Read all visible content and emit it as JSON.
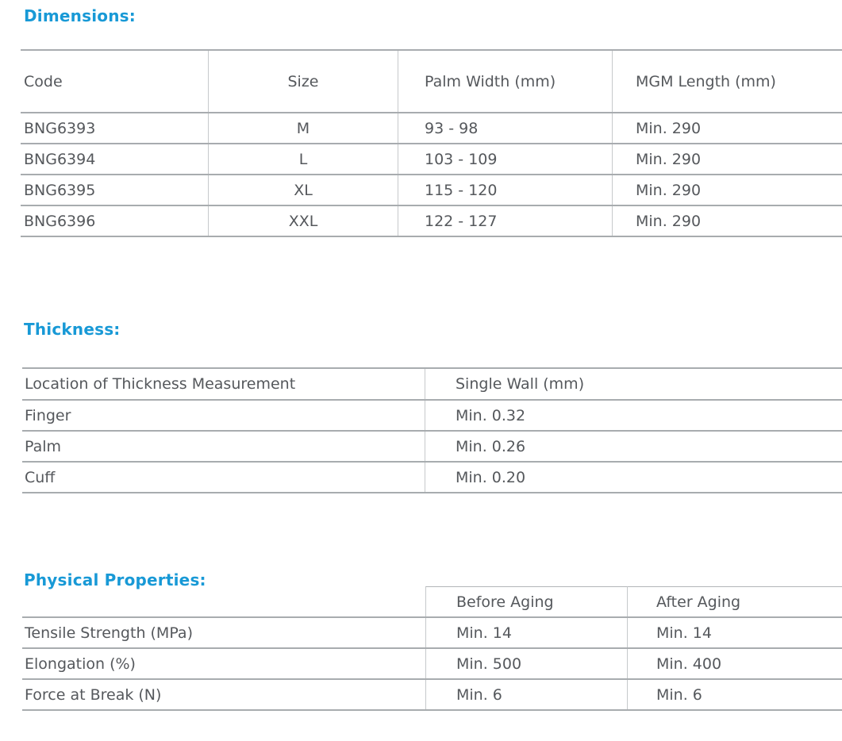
{
  "page": {
    "accent_color": "#1899d6",
    "text_color": "#55585c",
    "rule_color": "#a8acaf"
  },
  "sections": {
    "dimensions": {
      "heading": "Dimensions:",
      "table": {
        "columns": [
          "Code",
          "Size",
          "Palm Width (mm)",
          "MGM Length (mm)"
        ],
        "rows": [
          [
            "BNG6393",
            "M",
            "93 - 98",
            "Min. 290"
          ],
          [
            "BNG6394",
            "L",
            "103 - 109",
            "Min. 290"
          ],
          [
            "BNG6395",
            "XL",
            "115 - 120",
            "Min. 290"
          ],
          [
            "BNG6396",
            "XXL",
            "122 - 127",
            "Min. 290"
          ]
        ]
      }
    },
    "thickness": {
      "heading": "Thickness:",
      "table": {
        "columns": [
          "Location of Thickness Measurement",
          "Single Wall (mm)"
        ],
        "rows": [
          [
            "Finger",
            "Min. 0.32"
          ],
          [
            "Palm",
            "Min. 0.26"
          ],
          [
            "Cuff",
            "Min. 0.20"
          ]
        ]
      }
    },
    "physical_properties": {
      "heading": "Physical Properties:",
      "table": {
        "columns": [
          "",
          "Before Aging",
          "After Aging"
        ],
        "rows": [
          [
            "Tensile Strength (MPa)",
            "Min. 14",
            "Min. 14"
          ],
          [
            "Elongation (%)",
            "Min. 500",
            "Min. 400"
          ],
          [
            "Force at Break (N)",
            "Min. 6",
            "Min. 6"
          ]
        ]
      }
    }
  }
}
